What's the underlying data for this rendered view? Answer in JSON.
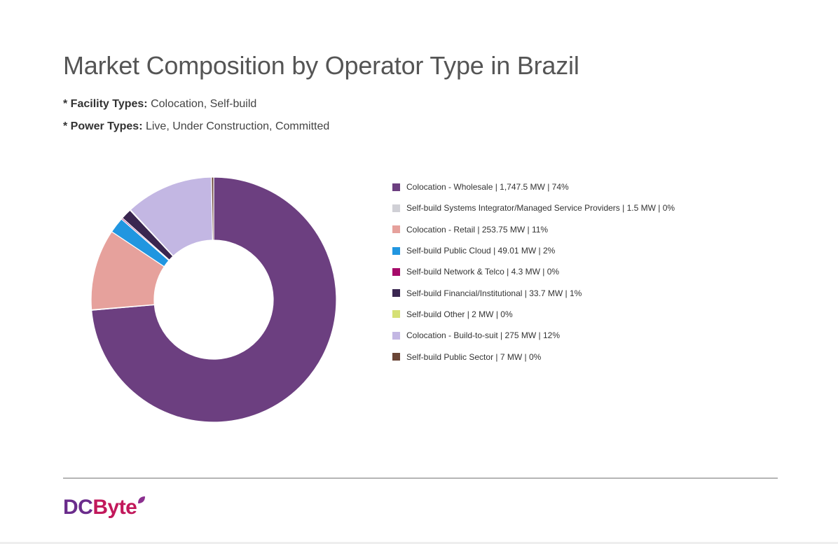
{
  "title": "Market Composition by Operator Type in Brazil",
  "filters": {
    "facility_label": "* Facility Types:",
    "facility_value": "Colocation, Self-build",
    "power_label": "* Power Types:",
    "power_value": "Live, Under Construction, Committed"
  },
  "brand": {
    "logo_part1": "DC",
    "logo_part2": "Byte",
    "colors": {
      "dc": "#6b2d8c",
      "byte": "#c2185b"
    }
  },
  "chart_data": {
    "type": "pie",
    "variant": "donut",
    "legend_position": "right",
    "unit": "MW",
    "slices": [
      {
        "name": "Colocation - Wholesale",
        "value": 1747.5,
        "value_text": "1,747.5",
        "percent": 74,
        "color": "#6c3f80"
      },
      {
        "name": "Self-build Systems Integrator/Managed Service Providers",
        "value": 1.5,
        "value_text": "1.5",
        "percent": 0,
        "color": "#d0d0d6"
      },
      {
        "name": "Colocation - Retail",
        "value": 253.75,
        "value_text": "253.75",
        "percent": 11,
        "color": "#e6a19c"
      },
      {
        "name": "Self-build Public Cloud",
        "value": 49.01,
        "value_text": "49.01",
        "percent": 2,
        "color": "#2196e0"
      },
      {
        "name": "Self-build Network & Telco",
        "value": 4.3,
        "value_text": "4.3",
        "percent": 0,
        "color": "#a60a6a"
      },
      {
        "name": "Self-build Financial/Institutional",
        "value": 33.7,
        "value_text": "33.7",
        "percent": 1,
        "color": "#3a2650"
      },
      {
        "name": "Self-build Other",
        "value": 2,
        "value_text": "2",
        "percent": 0,
        "color": "#d5e075"
      },
      {
        "name": "Colocation - Build-to-suit",
        "value": 275,
        "value_text": "275",
        "percent": 12,
        "color": "#c3b7e3"
      },
      {
        "name": "Self-build Public Sector",
        "value": 7,
        "value_text": "7",
        "percent": 0,
        "color": "#6a4536"
      }
    ]
  }
}
